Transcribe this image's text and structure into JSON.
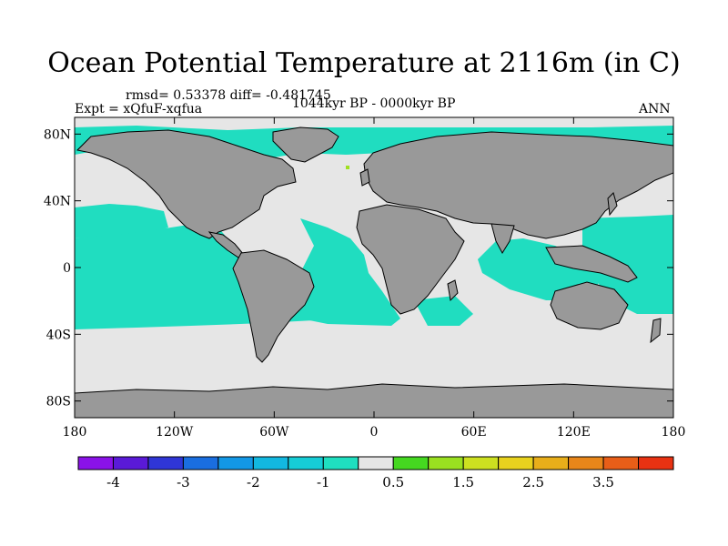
{
  "title": "Ocean Potential Temperature at 2116m (in C)",
  "stats_line": "rmsd= 0.53378 diff= -0.481745",
  "expt_line": "Expt = xQfuF-xqfua",
  "period_line": "1044kyr BP - 0000kyr BP",
  "season": "ANN",
  "axes": {
    "x_ticks": [
      {
        "value": -180,
        "label": "180"
      },
      {
        "value": -120,
        "label": "120W"
      },
      {
        "value": -60,
        "label": "60W"
      },
      {
        "value": 0,
        "label": "0"
      },
      {
        "value": 60,
        "label": "60E"
      },
      {
        "value": 120,
        "label": "120E"
      },
      {
        "value": 180,
        "label": "180"
      }
    ],
    "y_ticks": [
      {
        "value": 80,
        "label": "80N"
      },
      {
        "value": 40,
        "label": "40N"
      },
      {
        "value": 0,
        "label": "0"
      },
      {
        "value": -40,
        "label": "40S"
      },
      {
        "value": -80,
        "label": "80S"
      }
    ],
    "lon_range": [
      -180,
      180
    ],
    "lat_range": [
      -90,
      90
    ]
  },
  "colors": {
    "land": "#999999",
    "ocean_near_zero": "#e6e6e6",
    "ocean_cool": "#20ddc0",
    "warm_patch": "#a0e020"
  },
  "colorbar": {
    "colors": [
      "#8a12e8",
      "#5a1ad8",
      "#2f36d6",
      "#1a6ee0",
      "#1398e6",
      "#12b8e0",
      "#16cdd6",
      "#1fdfc0",
      "#e6e6e6",
      "#45d820",
      "#9ae020",
      "#cde020",
      "#e8d21e",
      "#e8ae1a",
      "#e8861a",
      "#e85e18",
      "#e83212"
    ],
    "labels": [
      {
        "after_box": 1,
        "text": "-4"
      },
      {
        "after_box": 3,
        "text": "-3"
      },
      {
        "after_box": 5,
        "text": "-2"
      },
      {
        "after_box": 7,
        "text": "-1"
      },
      {
        "after_box": 9,
        "text": "0.5"
      },
      {
        "after_box": 11,
        "text": "1.5"
      },
      {
        "after_box": 13,
        "text": "2.5"
      },
      {
        "after_box": 15,
        "text": "3.5"
      }
    ]
  }
}
